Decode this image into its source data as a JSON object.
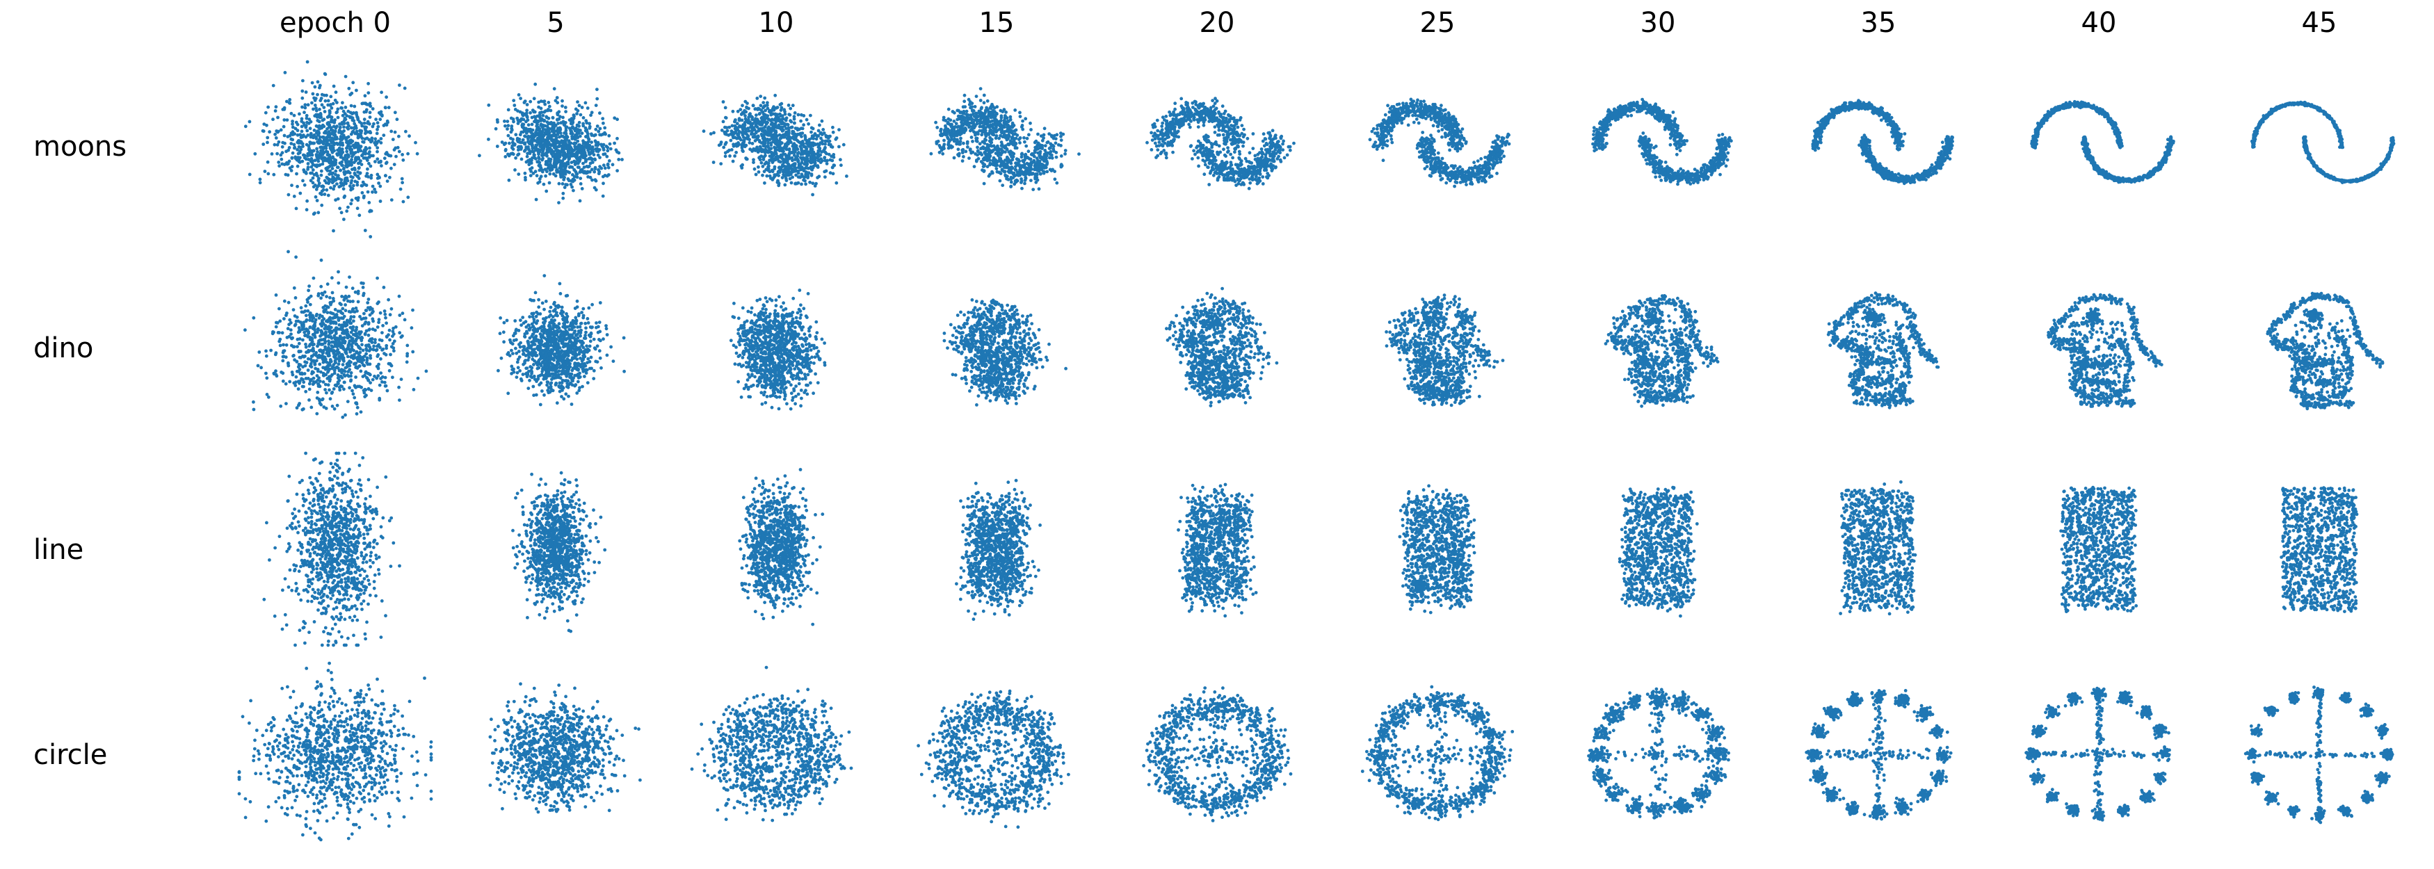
{
  "chart_data": {
    "type": "scatter",
    "title": "",
    "columns": [
      "epoch 0",
      "5",
      "10",
      "15",
      "20",
      "25",
      "30",
      "35",
      "40",
      "45"
    ],
    "rows": [
      "moons",
      "dino",
      "line",
      "circle"
    ],
    "epochs": [
      0,
      5,
      10,
      15,
      20,
      25,
      30,
      35,
      40,
      45
    ],
    "marker_color": "#1f77b4",
    "axes_visible": false,
    "grid": false,
    "legend": "none",
    "panel_xlim": [
      -3.2,
      3.2
    ],
    "panel_ylim": [
      -3.2,
      3.2
    ],
    "points_per_panel": 1000,
    "distributions": {
      "moons": "two interleaved half-circle arcs (upper arc centered left, lower arc centered right) with noise",
      "dino": "datasaurus dinosaur outline: head with eye at upper-left, long neck, belly, legs at bottom",
      "line": "uniform rectangle band, x in [-1, 1], y in [-1.6, 1.6]",
      "circle": "ring of 8 clustered blobs at radius 1.6 plus central cross of sparse points"
    },
    "sharpness_by_epoch": [
      0.0,
      0.45,
      0.6,
      0.7,
      0.78,
      0.84,
      0.89,
      0.93,
      0.96,
      0.98
    ]
  }
}
